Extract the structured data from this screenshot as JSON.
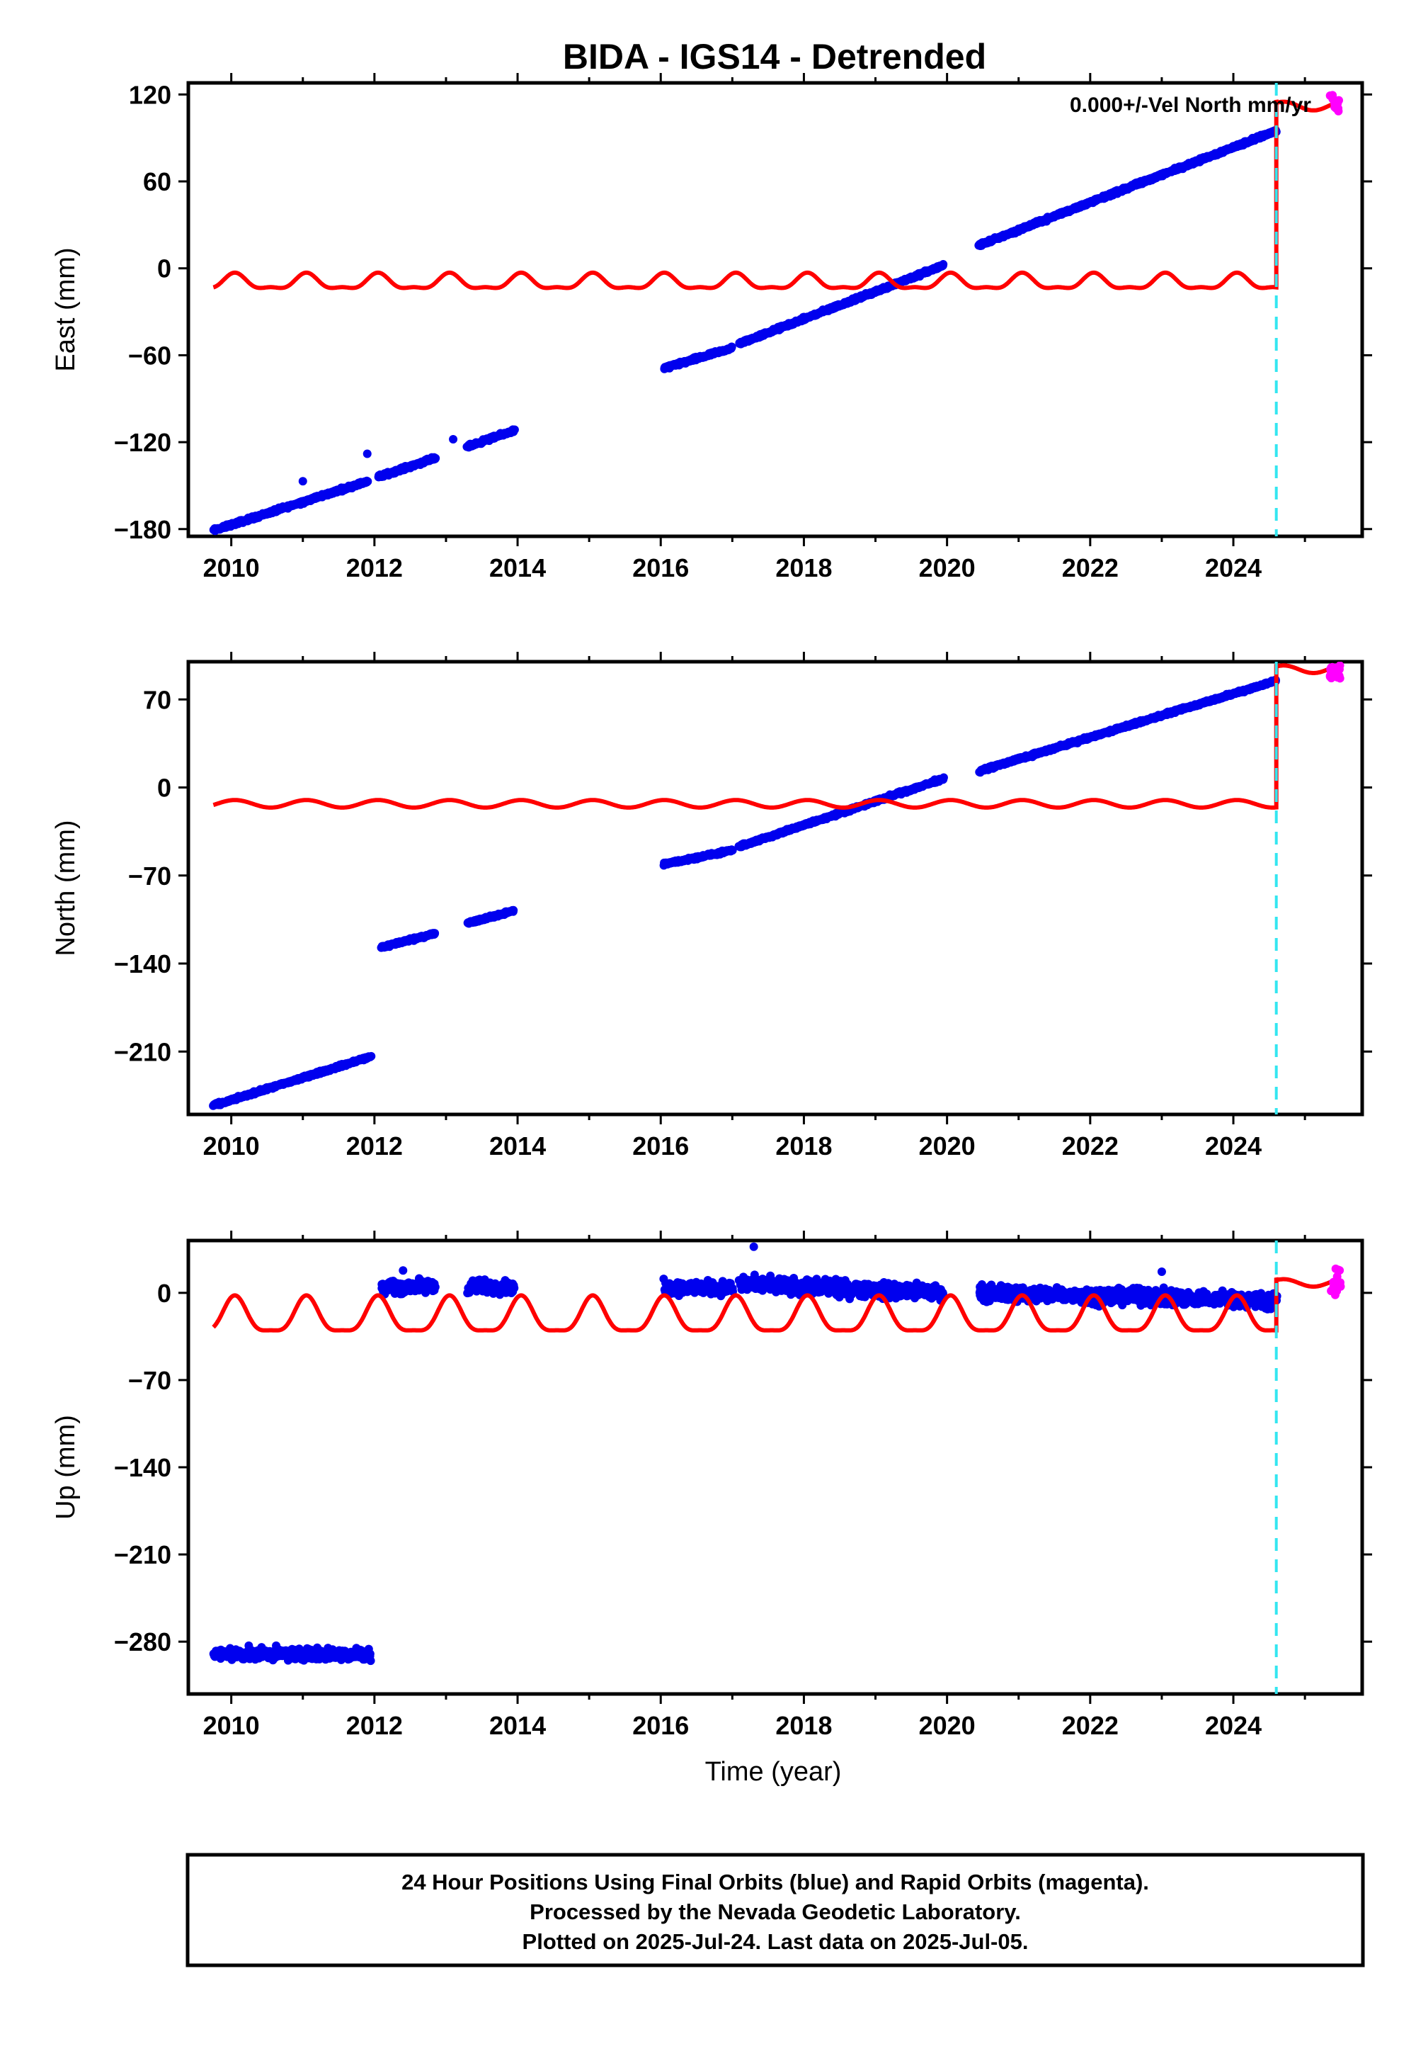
{
  "page_title": "BIDA - IGS14 - Detrended",
  "velocity_note": "0.000+/-Vel North mm/yr",
  "xlabel": "Time (year)",
  "footer": {
    "line1": "24 Hour Positions Using Final Orbits (blue) and Rapid Orbits (magenta).",
    "line2": "Processed by the Nevada Geodetic Laboratory.",
    "line3": "Plotted on 2025-Jul-24. Last data on 2025-Jul-05."
  },
  "colors": {
    "final": "#0000ee",
    "rapid": "#ff00ff",
    "model": "#ff0000",
    "equipment_change": "#33e6f0"
  },
  "chart_data": [
    {
      "type": "scatter",
      "ylabel": "East (mm)",
      "xlim": [
        2009.4,
        2025.8
      ],
      "ylim": [
        -185,
        128
      ],
      "x_ticks": [
        "2010",
        "2012",
        "2014",
        "2016",
        "2018",
        "2020",
        "2022",
        "2024"
      ],
      "y_ticks": [
        "120",
        "60",
        "0",
        "−60",
        "−120",
        "−180"
      ],
      "y_tick_values": [
        120,
        60,
        0,
        -60,
        -120,
        -180
      ],
      "segments": [
        {
          "x": [
            2009.75,
            2011.9
          ],
          "y": [
            -181,
            -147
          ]
        },
        {
          "x": [
            2012.05,
            2012.85
          ],
          "y": [
            -144,
            -131
          ]
        },
        {
          "x": [
            2013.3,
            2013.95
          ],
          "y": [
            -123,
            -112
          ]
        },
        {
          "x": [
            2016.05,
            2017.0
          ],
          "y": [
            -69,
            -55
          ]
        },
        {
          "x": [
            2017.1,
            2019.95
          ],
          "y": [
            -52,
            2
          ]
        },
        {
          "x": [
            2020.45,
            2024.6
          ],
          "y": [
            16,
            95
          ]
        }
      ],
      "isolated_points": [
        {
          "x": 2011.0,
          "y": -147
        },
        {
          "x": 2011.9,
          "y": -128
        },
        {
          "x": 2013.1,
          "y": -118
        }
      ],
      "rapid_range": {
        "x": [
          2025.35,
          2025.5
        ],
        "y": [
          108,
          120
        ]
      },
      "model": {
        "pre": {
          "offset": -10,
          "annual_amp": 5,
          "semi_amp": 2,
          "x_end": 2024.6
        },
        "post": {
          "offset": 112,
          "x_start": 2024.6
        }
      },
      "equipment_change_year": 2024.6
    },
    {
      "type": "scatter",
      "ylabel": "North (mm)",
      "xlim": [
        2009.4,
        2025.8
      ],
      "ylim": [
        -260,
        100
      ],
      "x_ticks": [
        "2010",
        "2012",
        "2014",
        "2016",
        "2018",
        "2020",
        "2022",
        "2024"
      ],
      "y_ticks": [
        "70",
        "0",
        "−70",
        "−140",
        "−210"
      ],
      "y_tick_values": [
        70,
        0,
        -70,
        -140,
        -210
      ],
      "segments": [
        {
          "x": [
            2009.75,
            2011.95
          ],
          "y": [
            -253,
            -214
          ]
        },
        {
          "x": [
            2012.1,
            2012.85
          ],
          "y": [
            -127,
            -116
          ]
        },
        {
          "x": [
            2013.3,
            2013.95
          ],
          "y": [
            -108,
            -98
          ]
        },
        {
          "x": [
            2016.05,
            2017.0
          ],
          "y": [
            -61,
            -50
          ]
        },
        {
          "x": [
            2017.1,
            2019.95
          ],
          "y": [
            -47,
            7
          ]
        },
        {
          "x": [
            2020.45,
            2024.6
          ],
          "y": [
            13,
            85
          ]
        }
      ],
      "isolated_points": [],
      "rapid_range": {
        "x": [
          2025.35,
          2025.5
        ],
        "y": [
          86,
          97
        ]
      },
      "model": {
        "pre": {
          "offset": -13,
          "annual_amp": 3,
          "semi_amp": 0,
          "x_end": 2024.6
        },
        "post": {
          "offset": 94,
          "x_start": 2024.6
        }
      },
      "equipment_change_year": 2024.6
    },
    {
      "type": "scatter",
      "ylabel": "Up (mm)",
      "xlim": [
        2009.4,
        2025.8
      ],
      "ylim": [
        -322,
        42
      ],
      "x_ticks": [
        "2010",
        "2012",
        "2014",
        "2016",
        "2018",
        "2020",
        "2022",
        "2024"
      ],
      "y_ticks": [
        "0",
        "−70",
        "−140",
        "−210",
        "−280"
      ],
      "y_tick_values": [
        0,
        -70,
        -140,
        -210,
        -280
      ],
      "segments": [
        {
          "x": [
            2009.75,
            2011.95
          ],
          "y": [
            -290,
            -290
          ],
          "spread": 7
        },
        {
          "x": [
            2012.1,
            2012.85
          ],
          "y": [
            5,
            5
          ],
          "spread": 8
        },
        {
          "x": [
            2013.3,
            2013.95
          ],
          "y": [
            5,
            5
          ],
          "spread": 8
        },
        {
          "x": [
            2016.05,
            2017.0
          ],
          "y": [
            4,
            4
          ],
          "spread": 8
        },
        {
          "x": [
            2017.1,
            2019.95
          ],
          "y": [
            7,
            0
          ],
          "spread": 9
        },
        {
          "x": [
            2020.45,
            2024.6
          ],
          "y": [
            0,
            -6
          ],
          "spread": 9
        }
      ],
      "isolated_points": [
        {
          "x": 2017.3,
          "y": 37
        },
        {
          "x": 2012.4,
          "y": 18
        },
        {
          "x": 2023.0,
          "y": 17
        }
      ],
      "rapid_range": {
        "x": [
          2025.35,
          2025.5
        ],
        "y": [
          -2,
          20
        ]
      },
      "model": {
        "pre": {
          "offset": -20,
          "annual_amp": 14,
          "semi_amp": 4,
          "x_end": 2024.6
        },
        "post": {
          "offset": 8,
          "x_start": 2024.6
        }
      },
      "equipment_change_year": 2024.6
    }
  ]
}
